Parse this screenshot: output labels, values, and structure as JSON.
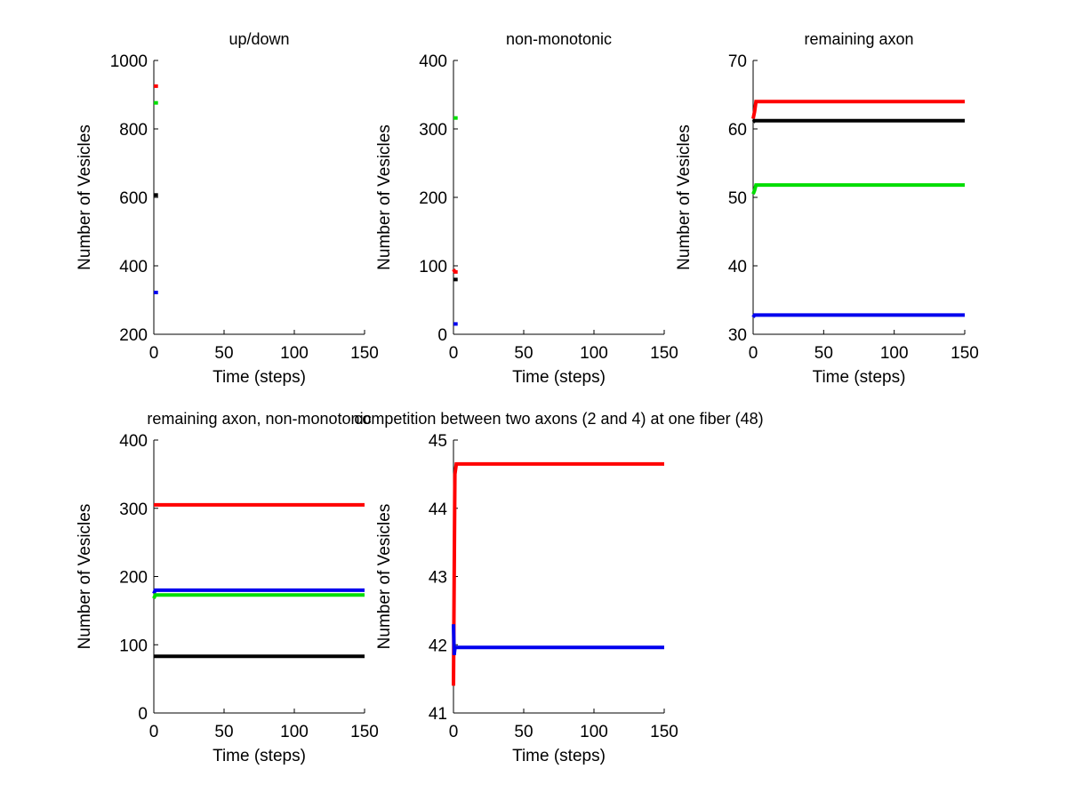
{
  "chart_data": [
    {
      "type": "line",
      "title": "up/down",
      "xlabel": "Time (steps)",
      "ylabel": "Number of Vesicles",
      "xlim": [
        0,
        150
      ],
      "ylim": [
        200,
        1000
      ],
      "xticks": [
        "0",
        "50",
        "100",
        "150"
      ],
      "yticks": [
        "200",
        "400",
        "600",
        "800",
        "1000"
      ],
      "series": [
        {
          "name": "red",
          "color": "#ff0000",
          "x": [
            0,
            3
          ],
          "values": [
            925,
            925
          ]
        },
        {
          "name": "green",
          "color": "#00dd00",
          "x": [
            0,
            3
          ],
          "values": [
            876,
            876
          ]
        },
        {
          "name": "black",
          "color": "#000000",
          "x": [
            0,
            3
          ],
          "values": [
            607,
            607
          ]
        },
        {
          "name": "blue",
          "color": "#0000ee",
          "x": [
            0,
            3
          ],
          "values": [
            322,
            322
          ]
        }
      ]
    },
    {
      "type": "line",
      "title": "non-monotonic",
      "xlabel": "Time (steps)",
      "ylabel": "Number of Vesicles",
      "xlim": [
        0,
        150
      ],
      "ylim": [
        0,
        400
      ],
      "xticks": [
        "0",
        "50",
        "100",
        "150"
      ],
      "yticks": [
        "0",
        "100",
        "200",
        "300",
        "400"
      ],
      "series": [
        {
          "name": "green",
          "color": "#00dd00",
          "x": [
            0,
            3
          ],
          "values": [
            316,
            316
          ]
        },
        {
          "name": "red",
          "color": "#ff0000",
          "x": [
            0,
            1,
            3
          ],
          "values": [
            95,
            91,
            91
          ]
        },
        {
          "name": "black",
          "color": "#000000",
          "x": [
            0,
            3
          ],
          "values": [
            80,
            80
          ]
        },
        {
          "name": "blue",
          "color": "#0000ee",
          "x": [
            0,
            3
          ],
          "values": [
            15,
            15
          ]
        }
      ]
    },
    {
      "type": "line",
      "title": "remaining axon",
      "xlabel": "Time (steps)",
      "ylabel": "Number of Vesicles",
      "xlim": [
        0,
        150
      ],
      "ylim": [
        30,
        70
      ],
      "xticks": [
        "0",
        "50",
        "100",
        "150"
      ],
      "yticks": [
        "30",
        "40",
        "50",
        "60",
        "70"
      ],
      "series": [
        {
          "name": "red",
          "color": "#ff0000",
          "x": [
            0,
            1,
            2,
            150
          ],
          "values": [
            61.5,
            62.5,
            64,
            64
          ]
        },
        {
          "name": "black",
          "color": "#000000",
          "x": [
            0,
            1,
            150
          ],
          "values": [
            61,
            61.2,
            61.2
          ]
        },
        {
          "name": "green",
          "color": "#00dd00",
          "x": [
            0,
            1,
            2,
            150
          ],
          "values": [
            50.5,
            51,
            51.8,
            51.8
          ]
        },
        {
          "name": "blue",
          "color": "#0000ee",
          "x": [
            0,
            1,
            150
          ],
          "values": [
            32.5,
            32.8,
            32.8
          ]
        }
      ]
    },
    {
      "type": "line",
      "title": "remaining axon, non-monotonic",
      "xlabel": "Time (steps)",
      "ylabel": "Number of Vesicles",
      "xlim": [
        0,
        150
      ],
      "ylim": [
        0,
        400
      ],
      "xticks": [
        "0",
        "50",
        "100",
        "150"
      ],
      "yticks": [
        "0",
        "100",
        "200",
        "300",
        "400"
      ],
      "series": [
        {
          "name": "red",
          "color": "#ff0000",
          "x": [
            0,
            150
          ],
          "values": [
            305,
            305
          ]
        },
        {
          "name": "blue",
          "color": "#0000ee",
          "x": [
            0,
            1,
            150
          ],
          "values": [
            175,
            180,
            180
          ]
        },
        {
          "name": "green",
          "color": "#00dd00",
          "x": [
            0,
            1,
            150
          ],
          "values": [
            168,
            173,
            173
          ]
        },
        {
          "name": "black",
          "color": "#000000",
          "x": [
            0,
            150
          ],
          "values": [
            83,
            83
          ]
        }
      ]
    },
    {
      "type": "line",
      "title": "competition between two axons (2 and 4) at one fiber (48)",
      "xlabel": "Time (steps)",
      "ylabel": "Number of Vesicles",
      "xlim": [
        0,
        150
      ],
      "ylim": [
        41,
        45
      ],
      "xticks": [
        "0",
        "50",
        "100",
        "150"
      ],
      "yticks": [
        "41",
        "42",
        "43",
        "44",
        "45"
      ],
      "series": [
        {
          "name": "red",
          "color": "#ff0000",
          "x": [
            0,
            0.5,
            1,
            2,
            150
          ],
          "values": [
            41.4,
            43,
            44.5,
            44.65,
            44.65
          ]
        },
        {
          "name": "blue",
          "color": "#0000ee",
          "x": [
            0,
            0.5,
            1,
            2,
            150
          ],
          "values": [
            42.3,
            41.85,
            41.95,
            41.96,
            41.96
          ]
        }
      ]
    }
  ]
}
